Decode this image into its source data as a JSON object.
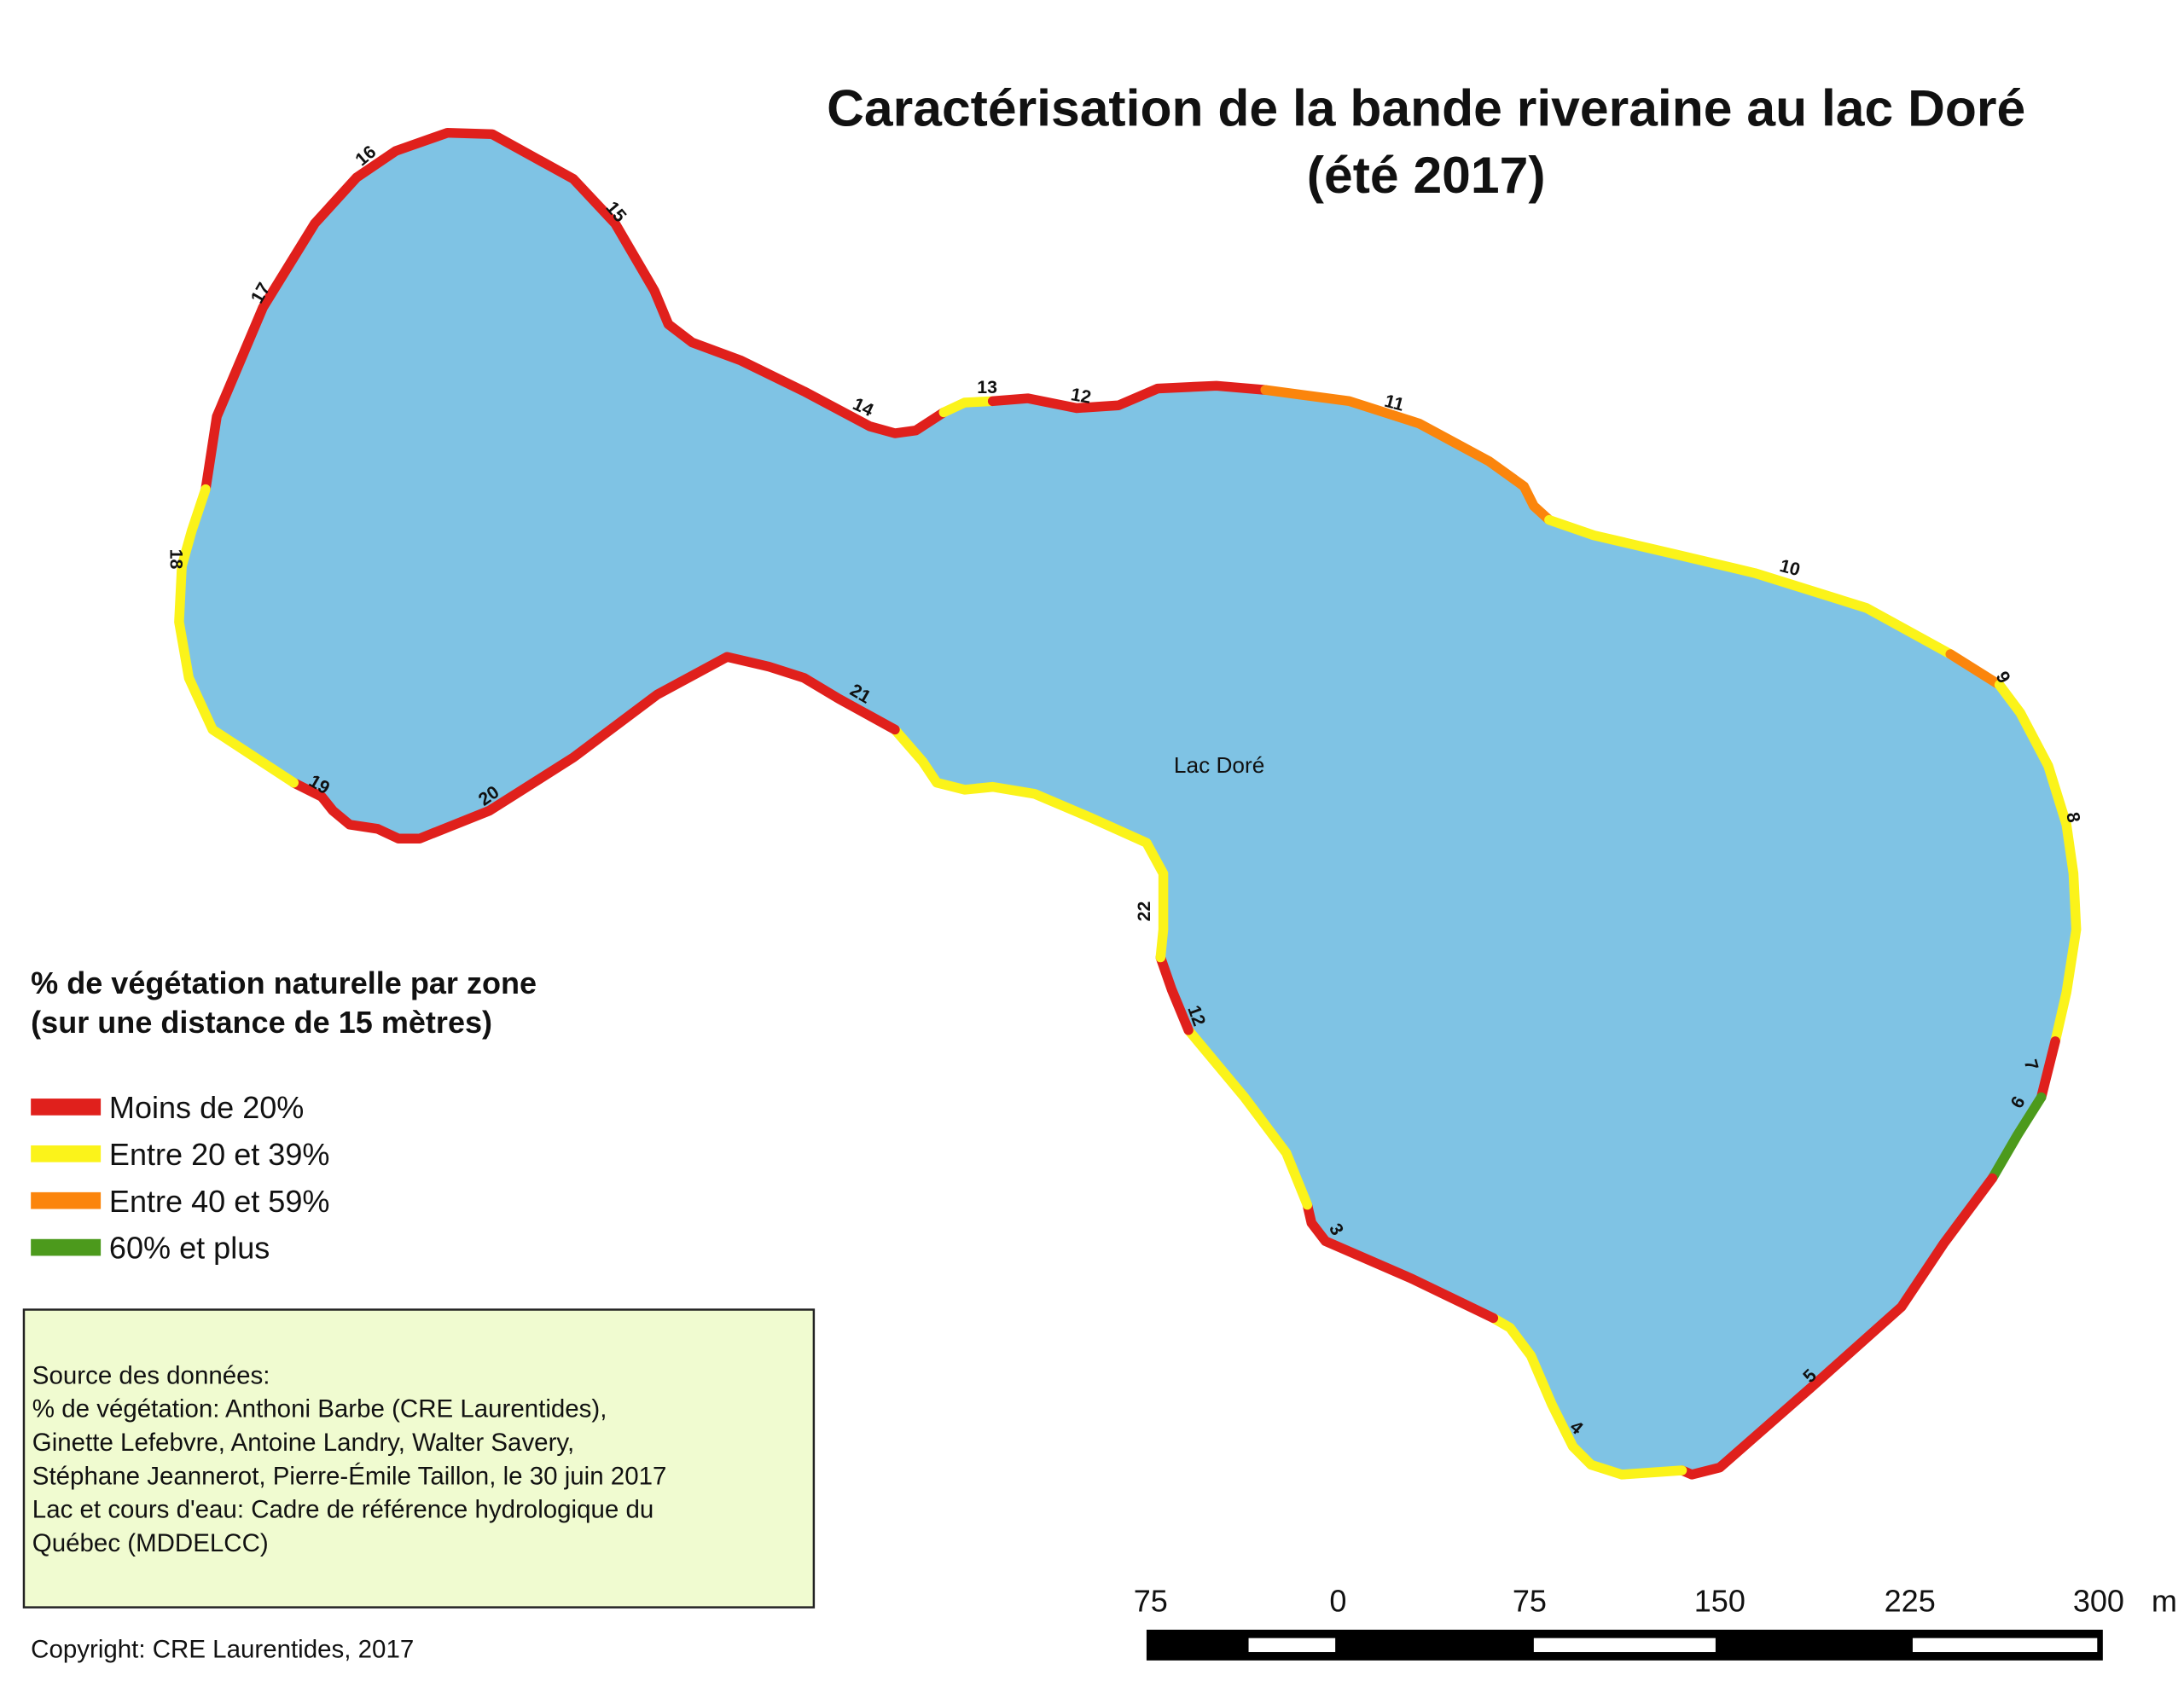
{
  "title": [
    "Caractérisation de la bande riveraine au lac Doré",
    "(été 2017)"
  ],
  "lake_label": "Lac Doré",
  "zones": [
    {
      "label": "16"
    },
    {
      "label": "15"
    },
    {
      "label": "17"
    },
    {
      "label": "14"
    },
    {
      "label": "13"
    },
    {
      "label": "12"
    },
    {
      "label": "11"
    },
    {
      "label": "10"
    },
    {
      "label": "9"
    },
    {
      "label": "8"
    },
    {
      "label": "7"
    },
    {
      "label": "6"
    },
    {
      "label": "5"
    },
    {
      "label": "4"
    },
    {
      "label": "3"
    },
    {
      "label": "12"
    },
    {
      "label": "22"
    },
    {
      "label": "21"
    },
    {
      "label": "20"
    },
    {
      "label": "19"
    },
    {
      "label": "18"
    }
  ],
  "legend": {
    "title": [
      "% de végétation naturelle par zone",
      "(sur une distance de 15 mètres)"
    ],
    "items": [
      {
        "label": "Moins de 20%",
        "color": "#e0201c"
      },
      {
        "label": "Entre 20 et 39%",
        "color": "#fbf31a"
      },
      {
        "label": "Entre 40 et 59%",
        "color": "#fb850c"
      },
      {
        "label": "60% et plus",
        "color": "#4c9a1c"
      }
    ]
  },
  "source": [
    "Source des données:",
    "% de végétation: Anthoni Barbe (CRE Laurentides),",
    "Ginette Lefebvre, Antoine Landry, Walter Savery,",
    "Stéphane Jeannerot, Pierre-Émile Taillon, le 30 juin 2017",
    "Lac et cours d'eau: Cadre de référence hydrologique du",
    "Québec (MDDELCC)"
  ],
  "copyright": "Copyright: CRE Laurentides, 2017",
  "scale_bar": {
    "labels": [
      "75",
      "0",
      "75",
      "150",
      "225",
      "300"
    ],
    "unit": "m"
  }
}
